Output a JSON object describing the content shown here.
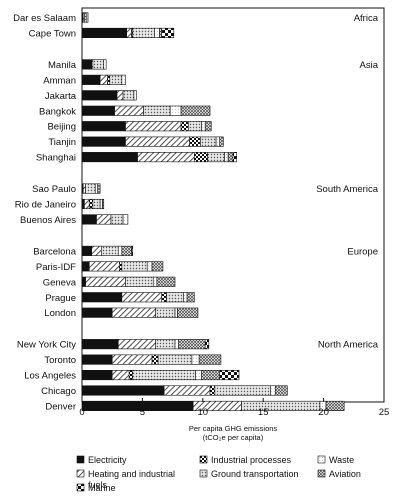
{
  "chart_data": {
    "type": "bar",
    "orientation": "horizontal",
    "stacked": true,
    "title": "",
    "xlabel": "Per capita GHG emissions",
    "xlabel_units": "(tCO₂e per capita)",
    "ylabel": "",
    "xlim": [
      0,
      25
    ],
    "xticks": [
      0,
      5,
      10,
      15,
      20,
      25
    ],
    "grid": false,
    "legend_position": "bottom",
    "legend_order": [
      "Electricity",
      "Industrial processes",
      "Waste",
      "Heating and industrial fuels",
      "Ground transportation",
      "Aviation",
      "Marine"
    ],
    "legend_labels": {
      "Electricity": [
        "Electricity"
      ],
      "Industrial processes": [
        "Industrial processes"
      ],
      "Waste": [
        "Waste"
      ],
      "Heating and industrial fuels": [
        "Heating and industrial",
        "fuels"
      ],
      "Ground transportation": [
        "Ground transportation"
      ],
      "Aviation": [
        "Aviation"
      ],
      "Marine": [
        "Marine"
      ]
    },
    "styles": {
      "Electricity": {
        "fill": "#111111"
      },
      "Heating and industrial fuels": {
        "fill": "url(#p-diag)"
      },
      "Industrial processes": {
        "fill": "url(#p-check)"
      },
      "Ground transportation": {
        "fill": "url(#p-dots)"
      },
      "Waste": {
        "fill": "url(#p-light)"
      },
      "Aviation": {
        "fill": "url(#p-cross)"
      },
      "Marine": {
        "fill": "url(#p-marine)"
      }
    },
    "segment_order": [
      "Electricity",
      "Heating and industrial fuels",
      "Industrial processes",
      "Ground transportation",
      "Waste",
      "Aviation",
      "Marine"
    ],
    "groups": [
      {
        "region": "Africa",
        "cities": [
          {
            "name": "Dar es Salaam",
            "values": {
              "Electricity": 0.1,
              "Heating and industrial fuels": 0.1,
              "Ground transportation": 0.2,
              "Waste": 0.1
            }
          },
          {
            "name": "Cape Town",
            "values": {
              "Electricity": 3.7,
              "Heating and industrial fuels": 0.4,
              "Industrial processes": 0.1,
              "Ground transportation": 1.8,
              "Waste": 0.4,
              "Aviation": 0.2,
              "Marine": 1.0
            }
          }
        ]
      },
      {
        "region": "Asia",
        "cities": [
          {
            "name": "Manila",
            "values": {
              "Electricity": 0.8,
              "Heating and industrial fuels": 0.1,
              "Ground transportation": 0.9,
              "Waste": 0.2
            }
          },
          {
            "name": "Amman",
            "values": {
              "Electricity": 1.5,
              "Heating and industrial fuels": 0.6,
              "Industrial processes": 0.2,
              "Ground transportation": 1.0,
              "Waste": 0.3
            }
          },
          {
            "name": "Jakarta",
            "values": {
              "Electricity": 2.9,
              "Heating and industrial fuels": 0.5,
              "Ground transportation": 0.9,
              "Waste": 0.2
            }
          },
          {
            "name": "Bangkok",
            "values": {
              "Electricity": 2.7,
              "Heating and industrial fuels": 2.4,
              "Ground transportation": 2.2,
              "Waste": 0.9,
              "Aviation": 2.4
            }
          },
          {
            "name": "Beijing",
            "values": {
              "Electricity": 3.6,
              "Heating and industrial fuels": 4.6,
              "Industrial processes": 0.6,
              "Ground transportation": 1.1,
              "Waste": 0.3,
              "Aviation": 0.5
            }
          },
          {
            "name": "Tianjin",
            "values": {
              "Electricity": 3.6,
              "Heating and industrial fuels": 5.3,
              "Industrial processes": 0.9,
              "Ground transportation": 1.3,
              "Waste": 0.3,
              "Aviation": 0.3
            }
          },
          {
            "name": "Shanghai",
            "values": {
              "Electricity": 4.6,
              "Heating and industrial fuels": 4.7,
              "Industrial processes": 1.1,
              "Ground transportation": 1.4,
              "Waste": 0.3,
              "Aviation": 0.4,
              "Marine": 0.3
            }
          }
        ]
      },
      {
        "region": "South America",
        "cities": [
          {
            "name": "Sao Paulo",
            "values": {
              "Electricity": 0.1,
              "Heating and industrial fuels": 0.2,
              "Ground transportation": 0.8,
              "Waste": 0.2,
              "Aviation": 0.2
            }
          },
          {
            "name": "Rio de Janeiro",
            "values": {
              "Electricity": 0.2,
              "Heating and industrial fuels": 0.4,
              "Industrial processes": 0.3,
              "Ground transportation": 0.6,
              "Waste": 0.2,
              "Aviation": 0.1
            }
          },
          {
            "name": "Buenos Aires",
            "values": {
              "Electricity": 1.2,
              "Heating and industrial fuels": 1.2,
              "Ground transportation": 1.0,
              "Waste": 0.4
            }
          }
        ]
      },
      {
        "region": "Europe",
        "cities": [
          {
            "name": "Barcelona",
            "values": {
              "Electricity": 0.8,
              "Heating and industrial fuels": 0.8,
              "Ground transportation": 1.4,
              "Waste": 0.3,
              "Aviation": 0.8,
              "Marine": 0.1
            }
          },
          {
            "name": "Paris-IDF",
            "values": {
              "Electricity": 0.6,
              "Heating and industrial fuels": 2.5,
              "Industrial processes": 0.2,
              "Ground transportation": 2.1,
              "Waste": 0.4,
              "Aviation": 0.9
            }
          },
          {
            "name": "Geneva",
            "values": {
              "Electricity": 0.3,
              "Heating and industrial fuels": 3.3,
              "Ground transportation": 2.3,
              "Waste": 0.3,
              "Aviation": 1.5
            }
          },
          {
            "name": "Prague",
            "values": {
              "Electricity": 3.3,
              "Heating and industrial fuels": 3.3,
              "Industrial processes": 0.4,
              "Ground transportation": 1.4,
              "Waste": 0.3,
              "Aviation": 0.6
            }
          },
          {
            "name": "London",
            "values": {
              "Electricity": 2.5,
              "Heating and industrial fuels": 3.6,
              "Ground transportation": 1.6,
              "Waste": 0.2,
              "Aviation": 1.7
            }
          }
        ]
      },
      {
        "region": "North America",
        "cities": [
          {
            "name": "New York City",
            "values": {
              "Electricity": 3.0,
              "Heating and industrial fuels": 3.1,
              "Ground transportation": 1.6,
              "Waste": 0.3,
              "Aviation": 2.2,
              "Marine": 0.3
            }
          },
          {
            "name": "Toronto",
            "values": {
              "Electricity": 2.5,
              "Heating and industrial fuels": 3.3,
              "Industrial processes": 0.5,
              "Ground transportation": 2.8,
              "Waste": 0.6,
              "Aviation": 1.8
            }
          },
          {
            "name": "Los Angeles",
            "values": {
              "Electricity": 2.5,
              "Heating and industrial fuels": 1.4,
              "Industrial processes": 0.3,
              "Ground transportation": 5.2,
              "Waste": 0.5,
              "Aviation": 1.5,
              "Marine": 1.6
            }
          },
          {
            "name": "Chicago",
            "values": {
              "Electricity": 6.8,
              "Heating and industrial fuels": 3.8,
              "Industrial processes": 0.4,
              "Ground transportation": 4.6,
              "Waste": 0.4,
              "Aviation": 1.0
            }
          },
          {
            "name": "Denver",
            "values": {
              "Electricity": 9.2,
              "Heating and industrial fuels": 4.0,
              "Ground transportation": 6.5,
              "Waste": 0.5,
              "Aviation": 1.5
            }
          }
        ]
      }
    ]
  }
}
